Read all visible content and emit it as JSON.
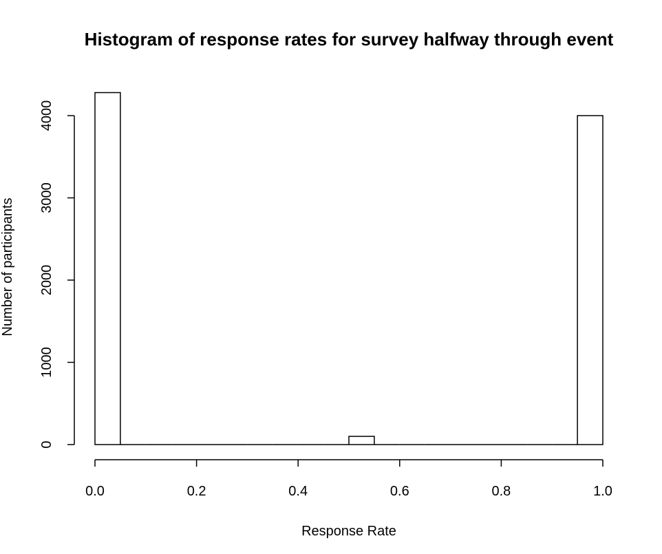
{
  "chart_data": {
    "type": "bar",
    "title": "Histogram of response rates for survey halfway through event",
    "xlabel": "Response Rate",
    "ylabel": "Number of participants",
    "xlim": [
      0,
      1
    ],
    "ylim": [
      0,
      4300
    ],
    "bin_width": 0.05,
    "bins": [
      {
        "start": 0.0,
        "end": 0.05,
        "count": 4280
      },
      {
        "start": 0.05,
        "end": 0.1,
        "count": 0
      },
      {
        "start": 0.1,
        "end": 0.15,
        "count": 0
      },
      {
        "start": 0.15,
        "end": 0.2,
        "count": 0
      },
      {
        "start": 0.2,
        "end": 0.25,
        "count": 0
      },
      {
        "start": 0.25,
        "end": 0.3,
        "count": 0
      },
      {
        "start": 0.3,
        "end": 0.35,
        "count": 0
      },
      {
        "start": 0.35,
        "end": 0.4,
        "count": 0
      },
      {
        "start": 0.4,
        "end": 0.45,
        "count": 0
      },
      {
        "start": 0.45,
        "end": 0.5,
        "count": 0
      },
      {
        "start": 0.5,
        "end": 0.55,
        "count": 100
      },
      {
        "start": 0.55,
        "end": 0.6,
        "count": 0
      },
      {
        "start": 0.6,
        "end": 0.65,
        "count": 0
      },
      {
        "start": 0.65,
        "end": 0.7,
        "count": 0
      },
      {
        "start": 0.7,
        "end": 0.75,
        "count": 0
      },
      {
        "start": 0.75,
        "end": 0.8,
        "count": 0
      },
      {
        "start": 0.8,
        "end": 0.85,
        "count": 0
      },
      {
        "start": 0.85,
        "end": 0.9,
        "count": 0
      },
      {
        "start": 0.9,
        "end": 0.95,
        "count": 0
      },
      {
        "start": 0.95,
        "end": 1.0,
        "count": 4000
      }
    ],
    "x_ticks": [
      {
        "value": 0.0,
        "label": "0.0"
      },
      {
        "value": 0.2,
        "label": "0.2"
      },
      {
        "value": 0.4,
        "label": "0.4"
      },
      {
        "value": 0.6,
        "label": "0.6"
      },
      {
        "value": 0.8,
        "label": "0.8"
      },
      {
        "value": 1.0,
        "label": "1.0"
      }
    ],
    "y_ticks": [
      {
        "value": 0,
        "label": "0"
      },
      {
        "value": 1000,
        "label": "1000"
      },
      {
        "value": 2000,
        "label": "2000"
      },
      {
        "value": 3000,
        "label": "3000"
      },
      {
        "value": 4000,
        "label": "4000"
      }
    ],
    "grid": false,
    "colors": {
      "bar_fill": "#ffffff",
      "bar_stroke": "#000000",
      "axis": "#000000"
    }
  }
}
